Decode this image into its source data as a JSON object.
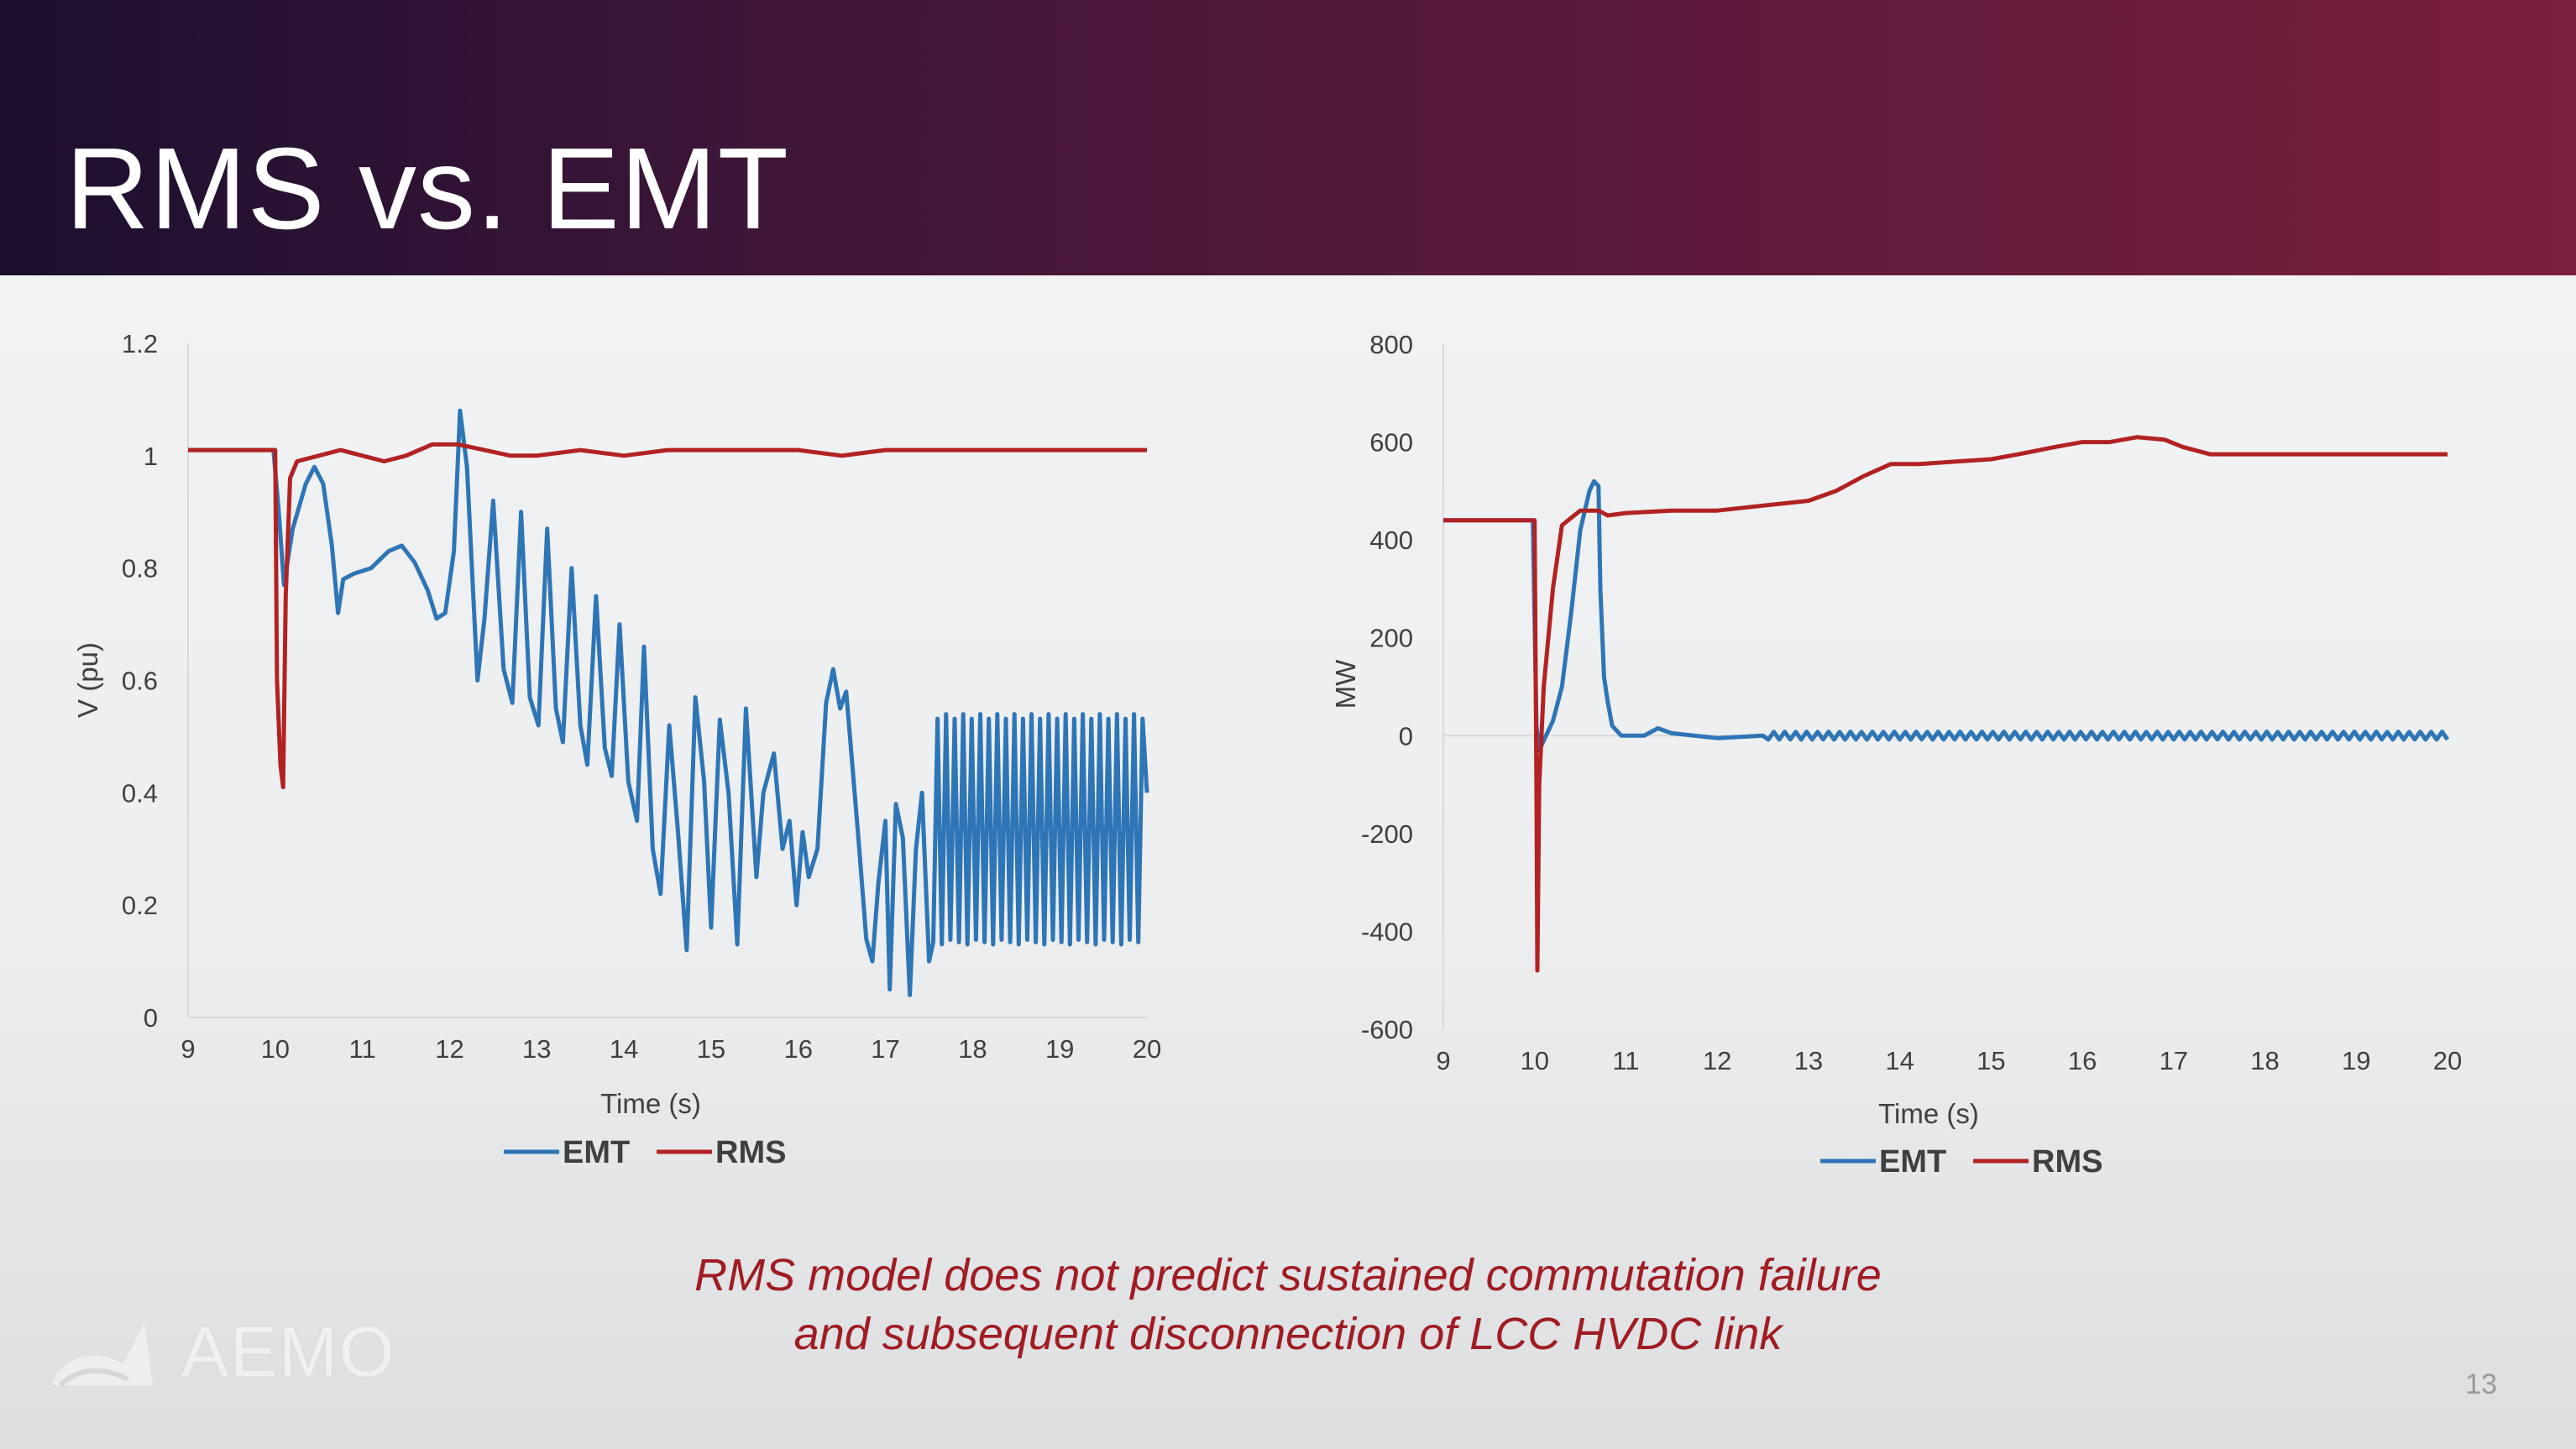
{
  "slide": {
    "title": "RMS vs. EMT",
    "caption_line1": "RMS model does not predict sustained commutation failure",
    "caption_line2": "and subsequent disconnection of LCC HVDC link",
    "logo_text": "AEMO",
    "page_number": "13"
  },
  "colors": {
    "EMT": "#2e75b6",
    "RMS": "#b22222"
  },
  "chart_data": [
    {
      "type": "line",
      "title": "",
      "xlabel": "Time (s)",
      "ylabel": "V (pu)",
      "xlim": [
        9,
        20
      ],
      "ylim": [
        0,
        1.2
      ],
      "x_ticks": [
        9,
        10,
        11,
        12,
        13,
        14,
        15,
        16,
        17,
        18,
        19,
        20
      ],
      "y_ticks": [
        0,
        0.2,
        0.4,
        0.6,
        0.8,
        1,
        1.2
      ],
      "y_tick_labels": [
        "0",
        "0.2",
        "0.4",
        "0.6",
        "0.8",
        "1",
        "1.2"
      ],
      "grid": false,
      "legend_position": "bottom",
      "series": [
        {
          "name": "EMT",
          "color": "#2e75b6",
          "points": [
            [
              9,
              1.01
            ],
            [
              9.98,
              1.01
            ],
            [
              10.04,
              0.9
            ],
            [
              10.1,
              0.77
            ],
            [
              10.2,
              0.87
            ],
            [
              10.35,
              0.95
            ],
            [
              10.45,
              0.98
            ],
            [
              10.55,
              0.95
            ],
            [
              10.65,
              0.84
            ],
            [
              10.72,
              0.72
            ],
            [
              10.78,
              0.78
            ],
            [
              10.9,
              0.79
            ],
            [
              11.1,
              0.8
            ],
            [
              11.3,
              0.83
            ],
            [
              11.45,
              0.84
            ],
            [
              11.6,
              0.81
            ],
            [
              11.75,
              0.76
            ],
            [
              11.85,
              0.71
            ],
            [
              11.95,
              0.72
            ],
            [
              12.05,
              0.83
            ],
            [
              12.12,
              1.08
            ],
            [
              12.2,
              0.98
            ],
            [
              12.25,
              0.82
            ],
            [
              12.32,
              0.6
            ],
            [
              12.4,
              0.71
            ],
            [
              12.5,
              0.92
            ],
            [
              12.62,
              0.62
            ],
            [
              12.72,
              0.56
            ],
            [
              12.82,
              0.9
            ],
            [
              12.92,
              0.57
            ],
            [
              13.02,
              0.52
            ],
            [
              13.12,
              0.87
            ],
            [
              13.22,
              0.55
            ],
            [
              13.3,
              0.49
            ],
            [
              13.4,
              0.8
            ],
            [
              13.5,
              0.52
            ],
            [
              13.58,
              0.45
            ],
            [
              13.68,
              0.75
            ],
            [
              13.78,
              0.48
            ],
            [
              13.86,
              0.43
            ],
            [
              13.95,
              0.7
            ],
            [
              14.05,
              0.42
            ],
            [
              14.15,
              0.35
            ],
            [
              14.23,
              0.66
            ],
            [
              14.33,
              0.3
            ],
            [
              14.42,
              0.22
            ],
            [
              14.52,
              0.52
            ],
            [
              14.62,
              0.33
            ],
            [
              14.72,
              0.12
            ],
            [
              14.82,
              0.57
            ],
            [
              14.92,
              0.42
            ],
            [
              15.0,
              0.16
            ],
            [
              15.1,
              0.53
            ],
            [
              15.2,
              0.4
            ],
            [
              15.3,
              0.13
            ],
            [
              15.4,
              0.55
            ],
            [
              15.52,
              0.25
            ],
            [
              15.6,
              0.4
            ],
            [
              15.72,
              0.47
            ],
            [
              15.82,
              0.3
            ],
            [
              15.9,
              0.35
            ],
            [
              15.98,
              0.2
            ],
            [
              16.05,
              0.33
            ],
            [
              16.12,
              0.25
            ],
            [
              16.22,
              0.3
            ],
            [
              16.32,
              0.56
            ],
            [
              16.4,
              0.62
            ],
            [
              16.48,
              0.55
            ],
            [
              16.55,
              0.58
            ],
            [
              16.62,
              0.45
            ],
            [
              16.7,
              0.3
            ],
            [
              16.78,
              0.14
            ],
            [
              16.85,
              0.1
            ],
            [
              16.92,
              0.24
            ],
            [
              17.0,
              0.35
            ],
            [
              17.05,
              0.05
            ],
            [
              17.12,
              0.38
            ],
            [
              17.2,
              0.32
            ],
            [
              17.28,
              0.04
            ],
            [
              17.35,
              0.3
            ],
            [
              17.42,
              0.4
            ],
            [
              17.5,
              0.1
            ]
          ],
          "osc_segment": {
            "from": 17.5,
            "to": 19.99,
            "period": 0.098,
            "min": 0.13,
            "max": 0.54
          },
          "tail": [
            [
              20,
              0.4
            ]
          ]
        },
        {
          "name": "RMS",
          "color": "#b22222",
          "points": [
            [
              9,
              1.01
            ],
            [
              10.0,
              1.01
            ],
            [
              10.02,
              0.6
            ],
            [
              10.06,
              0.45
            ],
            [
              10.09,
              0.41
            ],
            [
              10.12,
              0.75
            ],
            [
              10.17,
              0.96
            ],
            [
              10.25,
              0.99
            ],
            [
              10.5,
              1.0
            ],
            [
              10.75,
              1.01
            ],
            [
              11.0,
              1.0
            ],
            [
              11.25,
              0.99
            ],
            [
              11.5,
              1.0
            ],
            [
              11.8,
              1.02
            ],
            [
              12.1,
              1.02
            ],
            [
              12.4,
              1.01
            ],
            [
              12.7,
              1.0
            ],
            [
              13.0,
              1.0
            ],
            [
              13.5,
              1.01
            ],
            [
              14.0,
              1.0
            ],
            [
              14.5,
              1.01
            ],
            [
              15.0,
              1.01
            ],
            [
              15.5,
              1.01
            ],
            [
              16.0,
              1.01
            ],
            [
              16.5,
              1.0
            ],
            [
              17.0,
              1.01
            ],
            [
              17.5,
              1.01
            ],
            [
              18.0,
              1.01
            ],
            [
              18.5,
              1.01
            ],
            [
              19.0,
              1.01
            ],
            [
              19.5,
              1.01
            ],
            [
              20.0,
              1.01
            ]
          ]
        }
      ]
    },
    {
      "type": "line",
      "title": "",
      "xlabel": "Time (s)",
      "ylabel": "MW",
      "xlim": [
        9,
        20
      ],
      "ylim": [
        -600,
        800
      ],
      "x_ticks": [
        9,
        10,
        11,
        12,
        13,
        14,
        15,
        16,
        17,
        18,
        19,
        20
      ],
      "y_ticks": [
        -600,
        -400,
        -200,
        0,
        200,
        400,
        600,
        800
      ],
      "y_tick_labels": [
        "-600",
        "-400",
        "-200",
        "0",
        "200",
        "400",
        "600",
        "800"
      ],
      "grid": false,
      "legend_position": "bottom",
      "series": [
        {
          "name": "EMT",
          "color": "#2e75b6",
          "points": [
            [
              9,
              440
            ],
            [
              9.98,
              440
            ],
            [
              10.02,
              20
            ],
            [
              10.05,
              -30
            ],
            [
              10.1,
              -10
            ],
            [
              10.2,
              30
            ],
            [
              10.3,
              100
            ],
            [
              10.4,
              250
            ],
            [
              10.5,
              420
            ],
            [
              10.6,
              500
            ],
            [
              10.65,
              520
            ],
            [
              10.7,
              510
            ],
            [
              10.72,
              300
            ],
            [
              10.76,
              120
            ],
            [
              10.8,
              70
            ],
            [
              10.85,
              20
            ],
            [
              10.95,
              0
            ],
            [
              11.2,
              0
            ],
            [
              11.35,
              15
            ],
            [
              11.5,
              5
            ],
            [
              12.0,
              -5
            ],
            [
              12.5,
              0
            ]
          ],
          "osc_segment": {
            "from": 12.5,
            "to": 19.99,
            "period": 0.12,
            "min": -8,
            "max": 8
          },
          "tail": [
            [
              20,
              -8
            ]
          ]
        },
        {
          "name": "RMS",
          "color": "#b22222",
          "points": [
            [
              9,
              440
            ],
            [
              10.0,
              440
            ],
            [
              10.02,
              -100
            ],
            [
              10.03,
              -480
            ],
            [
              10.05,
              -100
            ],
            [
              10.1,
              100
            ],
            [
              10.2,
              300
            ],
            [
              10.3,
              430
            ],
            [
              10.5,
              460
            ],
            [
              10.7,
              460
            ],
            [
              10.8,
              450
            ],
            [
              11.0,
              455
            ],
            [
              11.5,
              460
            ],
            [
              12.0,
              460
            ],
            [
              12.5,
              470
            ],
            [
              13.0,
              480
            ],
            [
              13.3,
              500
            ],
            [
              13.6,
              530
            ],
            [
              13.9,
              555
            ],
            [
              14.2,
              555
            ],
            [
              14.6,
              560
            ],
            [
              15.0,
              565
            ],
            [
              15.3,
              575
            ],
            [
              15.7,
              590
            ],
            [
              16.0,
              600
            ],
            [
              16.3,
              600
            ],
            [
              16.6,
              610
            ],
            [
              16.9,
              605
            ],
            [
              17.1,
              590
            ],
            [
              17.4,
              575
            ],
            [
              18.0,
              575
            ],
            [
              18.5,
              575
            ],
            [
              19.0,
              575
            ],
            [
              19.5,
              575
            ],
            [
              20.0,
              575
            ]
          ]
        }
      ]
    }
  ]
}
